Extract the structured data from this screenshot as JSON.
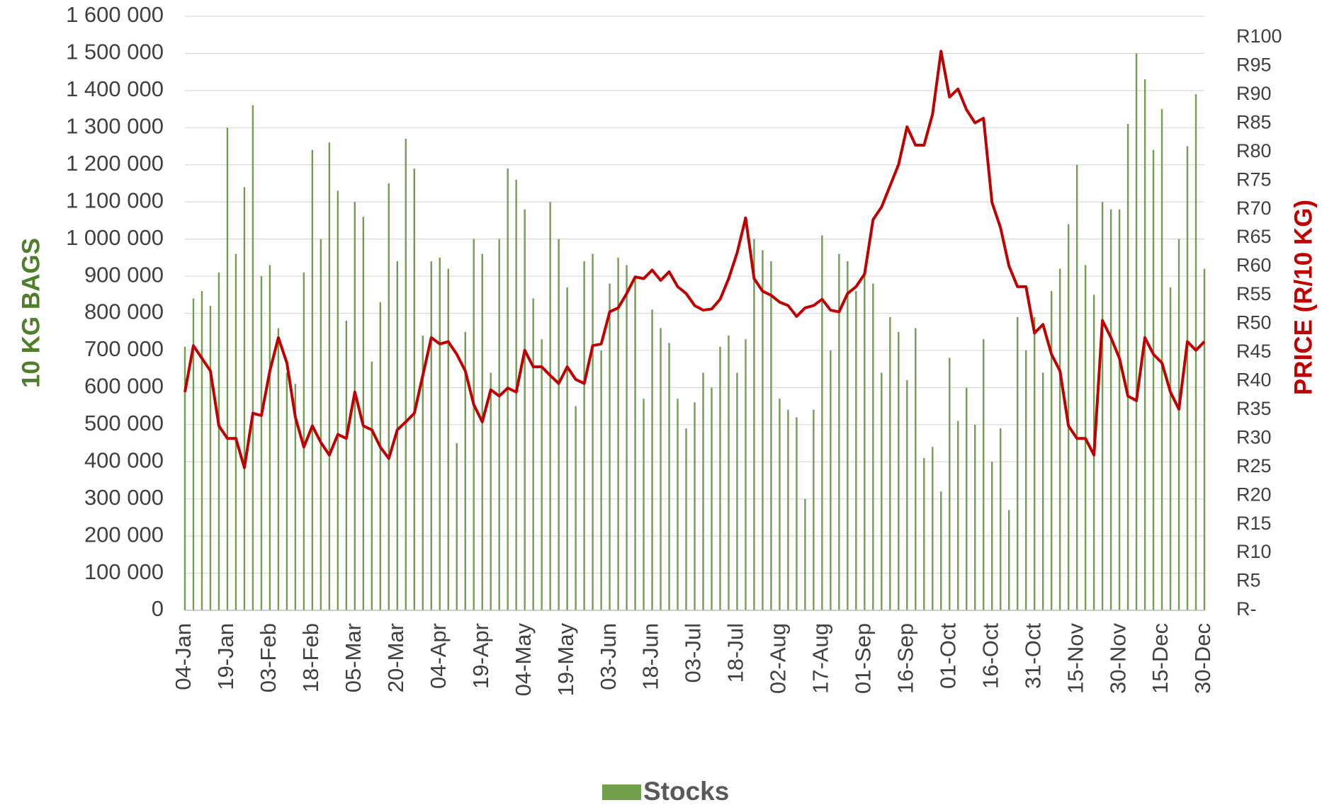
{
  "chart_data": {
    "type": "bar_line",
    "y_label": "10 KG BAGS",
    "y2_label": "PRICE (R/10 KG)",
    "categories": [
      "04-Jan",
      null,
      null,
      null,
      null,
      "19-Jan",
      null,
      null,
      null,
      null,
      "03-Feb",
      null,
      null,
      null,
      null,
      "18-Feb",
      null,
      null,
      null,
      null,
      "05-Mar",
      null,
      null,
      null,
      null,
      "20-Mar",
      null,
      null,
      null,
      null,
      "04-Apr",
      null,
      null,
      null,
      null,
      "19-Apr",
      null,
      null,
      null,
      null,
      "04-May",
      null,
      null,
      null,
      null,
      "19-May",
      null,
      null,
      null,
      null,
      "03-Jun",
      null,
      null,
      null,
      null,
      "18-Jun",
      null,
      null,
      null,
      null,
      "03-Jul",
      null,
      null,
      null,
      null,
      "18-Jul",
      null,
      null,
      null,
      null,
      "02-Aug",
      null,
      null,
      null,
      null,
      "17-Aug",
      null,
      null,
      null,
      null,
      "01-Sep",
      null,
      null,
      null,
      null,
      "16-Sep",
      null,
      null,
      null,
      null,
      "01-Oct",
      null,
      null,
      null,
      null,
      "16-Oct",
      null,
      null,
      null,
      null,
      "31-Oct",
      null,
      null,
      null,
      null,
      "15-Nov",
      null,
      null,
      null,
      null,
      "30-Nov",
      null,
      null,
      null,
      null,
      "15-Dec",
      null,
      null,
      null,
      null,
      "30-Dec"
    ],
    "series": [
      {
        "name": "Stocks",
        "color": "#70a04a",
        "axis": "y",
        "values": [
          710000,
          840000,
          860000,
          820000,
          910000,
          1300000,
          960000,
          1140000,
          1360000,
          900000,
          930000,
          760000,
          640000,
          610000,
          910000,
          1240000,
          1000000,
          1260000,
          1130000,
          780000,
          1100000,
          1060000,
          670000,
          830000,
          1150000,
          940000,
          1270000,
          1190000,
          740000,
          940000,
          950000,
          920000,
          450000,
          750000,
          1000000,
          960000,
          640000,
          1000000,
          1190000,
          1160000,
          1080000,
          840000,
          730000,
          1100000,
          1000000,
          870000,
          550000,
          940000,
          960000,
          700000,
          880000,
          950000,
          930000,
          900000,
          570000,
          810000,
          760000,
          720000,
          570000,
          490000,
          560000,
          640000,
          600000,
          710000,
          740000,
          640000,
          730000,
          1000000,
          970000,
          940000,
          570000,
          540000,
          520000,
          300000,
          540000,
          1010000,
          700000,
          960000,
          940000,
          860000,
          920000,
          880000,
          640000,
          790000,
          750000,
          620000,
          760000,
          410000,
          440000,
          320000,
          680000,
          510000,
          600000,
          500000,
          730000,
          400000,
          490000,
          270000,
          790000,
          700000,
          790000,
          640000,
          860000,
          920000,
          1040000,
          1200000,
          930000,
          850000,
          1100000,
          1080000,
          1080000,
          1310000,
          1500000,
          1430000,
          1240000,
          1350000,
          870000,
          1000000,
          1250000,
          1390000,
          920000
        ]
      },
      {
        "color": "#c00000",
        "axis": "y2",
        "values": [
          38.1,
          46.2,
          44.0,
          41.8,
          32.2,
          30.0,
          30.0,
          24.9,
          34.4,
          34.0,
          41.8,
          47.6,
          43.2,
          33.7,
          28.5,
          32.2,
          29.3,
          27.1,
          30.7,
          30.0,
          38.1,
          32.2,
          31.5,
          28.5,
          26.5,
          31.5,
          32.9,
          34.4,
          41.0,
          47.6,
          46.5,
          46.9,
          44.7,
          41.8,
          35.9,
          32.9,
          38.5,
          37.4,
          38.8,
          38.1,
          45.4,
          42.5,
          42.5,
          41.0,
          39.6,
          42.5,
          40.3,
          39.6,
          46.2,
          46.5,
          52.1,
          52.8,
          55.3,
          58.2,
          57.9,
          59.4,
          57.6,
          59.1,
          56.5,
          55.3,
          53.2,
          52.4,
          52.6,
          54.3,
          57.9,
          62.4,
          68.5,
          57.9,
          55.7,
          55.0,
          53.8,
          53.2,
          51.3,
          52.8,
          53.2,
          54.3,
          52.4,
          52.1,
          55.3,
          56.5,
          58.7,
          68.2,
          70.4,
          74.1,
          77.8,
          84.4,
          81.2,
          81.2,
          86.6,
          97.6,
          89.6,
          91.0,
          87.4,
          85.1,
          85.9,
          71.2,
          66.8,
          60.1,
          56.5,
          56.5,
          48.4,
          49.9,
          44.7,
          41.8,
          32.2,
          30.0,
          30.0,
          27.1,
          50.6,
          47.6,
          44.0,
          37.4,
          36.6,
          47.6,
          44.7,
          43.2,
          38.1,
          35.1,
          46.9,
          45.4,
          46.9
        ]
      }
    ],
    "ylim": [
      0,
      1600000
    ],
    "yticks": [
      0,
      {
        "value": 100000,
        "label": "100 000"
      },
      {
        "value": 200000,
        "label": "200 000"
      },
      {
        "value": 300000,
        "label": "300 000"
      },
      {
        "value": 400000,
        "label": "400 000"
      },
      {
        "value": 500000,
        "label": "500 000"
      },
      {
        "value": 600000,
        "label": "600 000"
      },
      {
        "value": 700000,
        "label": "700 000"
      },
      {
        "value": 800000,
        "label": "800 000"
      },
      {
        "value": 900000,
        "label": "900 000"
      },
      {
        "value": 1000000,
        "label": "1 000 000"
      },
      {
        "value": 1100000,
        "label": "1 100 000"
      },
      {
        "value": 1200000,
        "label": "1 200 000"
      },
      {
        "value": 1300000,
        "label": "1 300 000"
      },
      {
        "value": 1400000,
        "label": "1 400 000"
      },
      {
        "value": 1500000,
        "label": "1 500 000"
      },
      {
        "value": 1600000,
        "label": "1 600 000"
      }
    ],
    "y2lim": [
      0,
      103.7
    ],
    "y2ticks": [
      {
        "value": 0,
        "label": "R-"
      },
      {
        "value": 5,
        "label": "R5"
      },
      {
        "value": 10,
        "label": "R10"
      },
      {
        "value": 15,
        "label": "R15"
      },
      {
        "value": 20,
        "label": "R20"
      },
      {
        "value": 25,
        "label": "R25"
      },
      {
        "value": 30,
        "label": "R30"
      },
      {
        "value": 35,
        "label": "R35"
      },
      {
        "value": 40,
        "label": "R40"
      },
      {
        "value": 45,
        "label": "R45"
      },
      {
        "value": 50,
        "label": "R50"
      },
      {
        "value": 55,
        "label": "R55"
      },
      {
        "value": 60,
        "label": "R60"
      },
      {
        "value": 65,
        "label": "R65"
      },
      {
        "value": 70,
        "label": "R70"
      },
      {
        "value": 75,
        "label": "R75"
      },
      {
        "value": 80,
        "label": "R80"
      },
      {
        "value": 85,
        "label": "R85"
      },
      {
        "value": 90,
        "label": "R90"
      },
      {
        "value": 95,
        "label": "R95"
      },
      {
        "value": 100,
        "label": "R100"
      }
    ],
    "grid": true,
    "legend": "bottom"
  }
}
